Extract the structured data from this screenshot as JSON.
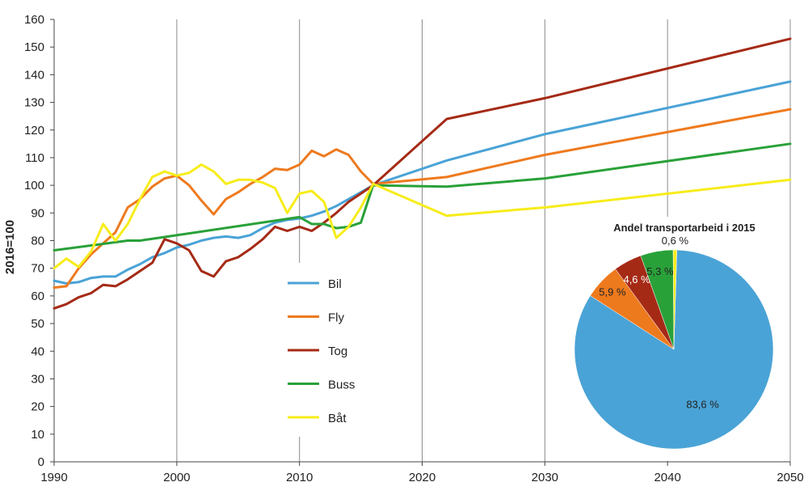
{
  "chart_data": [
    {
      "type": "line",
      "xlabel": "",
      "ylabel": "2016=100",
      "xlim": [
        1990,
        2050
      ],
      "ylim": [
        0,
        160
      ],
      "xticks": [
        "1990",
        "2000",
        "2010",
        "2020",
        "2030",
        "2040",
        "2050"
      ],
      "yticks": [
        "0",
        "10",
        "20",
        "30",
        "40",
        "50",
        "60",
        "70",
        "80",
        "90",
        "100",
        "110",
        "120",
        "130",
        "140",
        "150",
        "160"
      ],
      "grid": "vertical",
      "legend_position": "center",
      "series": [
        {
          "name": "Bil",
          "color": "#4aa3d6",
          "points": [
            [
              1990,
              65.5
            ],
            [
              1991,
              64.5
            ],
            [
              1992,
              65
            ],
            [
              1993,
              66.5
            ],
            [
              1994,
              67
            ],
            [
              1995,
              67
            ],
            [
              1996,
              69.5
            ],
            [
              1997,
              71.5
            ],
            [
              1998,
              74
            ],
            [
              1999,
              75.5
            ],
            [
              2000,
              77.5
            ],
            [
              2001,
              78.5
            ],
            [
              2002,
              80
            ],
            [
              2003,
              81
            ],
            [
              2004,
              81.5
            ],
            [
              2005,
              81
            ],
            [
              2006,
              82
            ],
            [
              2007,
              84.5
            ],
            [
              2008,
              86.5
            ],
            [
              2009,
              87.5
            ],
            [
              2010,
              88
            ],
            [
              2011,
              89
            ],
            [
              2012,
              90.5
            ],
            [
              2013,
              92.5
            ],
            [
              2014,
              95
            ],
            [
              2015,
              97.5
            ],
            [
              2016,
              100
            ],
            [
              2022,
              109
            ],
            [
              2030,
              118.5
            ],
            [
              2050,
              137.5
            ]
          ]
        },
        {
          "name": "Fly",
          "color": "#ee7a1e",
          "points": [
            [
              1990,
              63
            ],
            [
              1991,
              63.5
            ],
            [
              1992,
              70
            ],
            [
              1993,
              75
            ],
            [
              1994,
              79
            ],
            [
              1995,
              83
            ],
            [
              1996,
              92
            ],
            [
              1997,
              95
            ],
            [
              1998,
              99.5
            ],
            [
              1999,
              102.5
            ],
            [
              2000,
              103.5
            ],
            [
              2001,
              100
            ],
            [
              2002,
              94.5
            ],
            [
              2003,
              89.5
            ],
            [
              2004,
              95
            ],
            [
              2005,
              97.5
            ],
            [
              2006,
              100.5
            ],
            [
              2007,
              103
            ],
            [
              2008,
              106
            ],
            [
              2009,
              105.5
            ],
            [
              2010,
              107.5
            ],
            [
              2011,
              112.5
            ],
            [
              2012,
              110.5
            ],
            [
              2013,
              113
            ],
            [
              2014,
              111
            ],
            [
              2015,
              105
            ],
            [
              2016,
              100.5
            ],
            [
              2022,
              103
            ],
            [
              2030,
              111
            ],
            [
              2050,
              127.5
            ]
          ]
        },
        {
          "name": "Tog",
          "color": "#a52a16",
          "points": [
            [
              1990,
              55.5
            ],
            [
              1991,
              57
            ],
            [
              1992,
              59.5
            ],
            [
              1993,
              61
            ],
            [
              1994,
              64
            ],
            [
              1995,
              63.5
            ],
            [
              1996,
              66
            ],
            [
              1997,
              69
            ],
            [
              1998,
              72
            ],
            [
              1999,
              80.5
            ],
            [
              2000,
              79
            ],
            [
              2001,
              76.5
            ],
            [
              2002,
              69
            ],
            [
              2003,
              67
            ],
            [
              2004,
              72.5
            ],
            [
              2005,
              74
            ],
            [
              2006,
              77
            ],
            [
              2007,
              80.5
            ],
            [
              2008,
              85
            ],
            [
              2009,
              83.5
            ],
            [
              2010,
              85
            ],
            [
              2011,
              83.5
            ],
            [
              2012,
              86.5
            ],
            [
              2013,
              90
            ],
            [
              2014,
              94
            ],
            [
              2015,
              97
            ],
            [
              2016,
              100
            ],
            [
              2022,
              124
            ],
            [
              2030,
              131.5
            ],
            [
              2050,
              153
            ]
          ]
        },
        {
          "name": "Buss",
          "color": "#29a139",
          "points": [
            [
              1990,
              76.5
            ],
            [
              1996,
              80
            ],
            [
              1997,
              80
            ],
            [
              2010,
              88.5
            ],
            [
              2011,
              86
            ],
            [
              2012,
              86
            ],
            [
              2013,
              84.5
            ],
            [
              2014,
              85
            ],
            [
              2015,
              86.5
            ],
            [
              2016,
              100
            ],
            [
              2022,
              99.5
            ],
            [
              2030,
              102.5
            ],
            [
              2050,
              115
            ]
          ]
        },
        {
          "name": "Båt",
          "color": "#f7ec1a",
          "points": [
            [
              1990,
              70
            ],
            [
              1991,
              73.5
            ],
            [
              1992,
              70.5
            ],
            [
              1993,
              76
            ],
            [
              1994,
              86
            ],
            [
              1995,
              80
            ],
            [
              1996,
              86
            ],
            [
              1997,
              95
            ],
            [
              1998,
              103
            ],
            [
              1999,
              105
            ],
            [
              2000,
              103.5
            ],
            [
              2001,
              104.5
            ],
            [
              2002,
              107.5
            ],
            [
              2003,
              105
            ],
            [
              2004,
              100.5
            ],
            [
              2005,
              102
            ],
            [
              2006,
              102
            ],
            [
              2007,
              101
            ],
            [
              2008,
              99
            ],
            [
              2009,
              90
            ],
            [
              2010,
              97
            ],
            [
              2011,
              98
            ],
            [
              2012,
              94
            ],
            [
              2013,
              81
            ],
            [
              2014,
              85
            ],
            [
              2015,
              92
            ],
            [
              2016,
              100.5
            ],
            [
              2022,
              89
            ],
            [
              2030,
              92
            ],
            [
              2050,
              102
            ]
          ]
        }
      ]
    },
    {
      "type": "pie",
      "title": "Andel transportarbeid i 2015",
      "slices": [
        {
          "name": "Bil",
          "value": 83.6,
          "label": "83,6 %",
          "color": "#4aa3d6"
        },
        {
          "name": "Fly",
          "value": 5.9,
          "label": "5,9 %",
          "color": "#ee7a1e"
        },
        {
          "name": "Tog",
          "value": 4.6,
          "label": "4,6 %",
          "color": "#a52a16"
        },
        {
          "name": "Buss",
          "value": 5.3,
          "label": "5,3 %",
          "color": "#29a139"
        },
        {
          "name": "Båt",
          "value": 0.6,
          "label": "0,6 %",
          "color": "#f7ec1a"
        }
      ]
    }
  ]
}
